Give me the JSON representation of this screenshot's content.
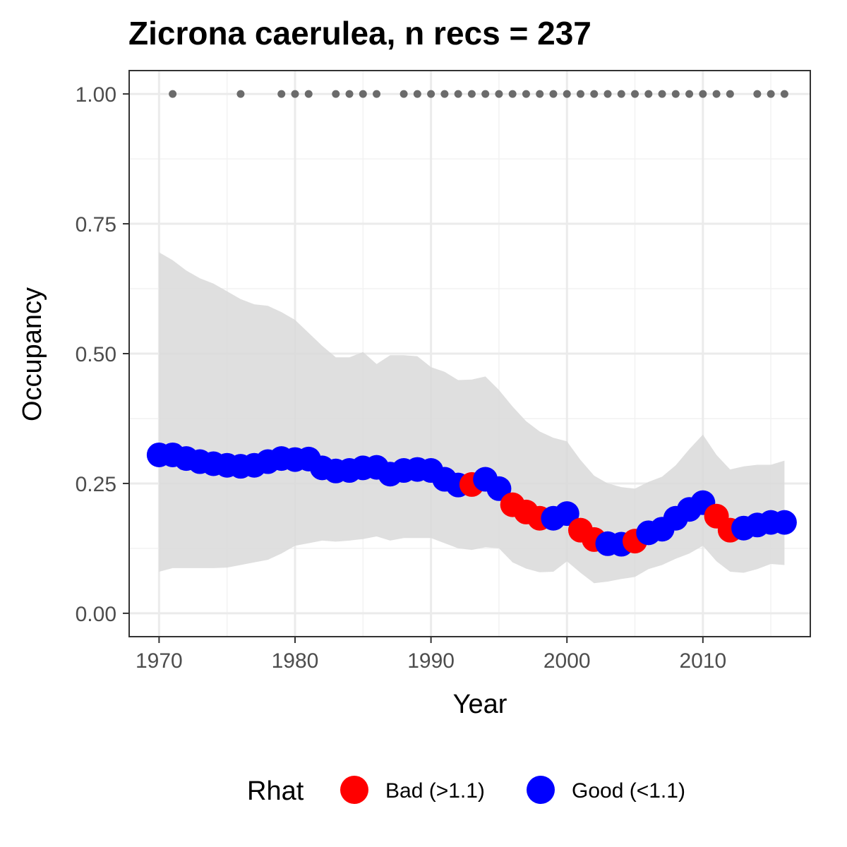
{
  "chart_data": {
    "type": "line",
    "title": "Zicrona caerulea, n recs = 237",
    "xlabel": "Year",
    "ylabel": "Occupancy",
    "xlim": [
      1967.8,
      2017.9
    ],
    "ylim": [
      -0.045,
      1.045
    ],
    "x_ticks": [
      1970,
      1980,
      1990,
      2000,
      2010
    ],
    "x_tick_labels": [
      "1970",
      "1980",
      "1990",
      "2000",
      "2010"
    ],
    "y_ticks": [
      0,
      0.25,
      0.5,
      0.75,
      1.0
    ],
    "y_tick_labels": [
      "0.00",
      "0.25",
      "0.50",
      "0.75",
      "1.00"
    ],
    "grid": true,
    "legend": {
      "title": "Rhat",
      "position": "bottom",
      "entries": [
        {
          "label": "Bad (>1.1)",
          "color": "#ff0000"
        },
        {
          "label": "Good (<1.1)",
          "color": "#0000ff"
        }
      ]
    },
    "colors": {
      "bad": "#ff0000",
      "good": "#0000ff",
      "ribbon": "#d9d9d9",
      "records": "#6b6b6b"
    },
    "series": [
      {
        "name": "Occupancy",
        "x": [
          1970,
          1971,
          1972,
          1973,
          1974,
          1975,
          1976,
          1977,
          1978,
          1979,
          1980,
          1981,
          1982,
          1983,
          1984,
          1985,
          1986,
          1987,
          1988,
          1989,
          1990,
          1991,
          1992,
          1993,
          1994,
          1995,
          1996,
          1997,
          1998,
          1999,
          2000,
          2001,
          2002,
          2003,
          2004,
          2005,
          2006,
          2007,
          2008,
          2009,
          2010,
          2011,
          2012,
          2013,
          2014,
          2015,
          2016
        ],
        "y": [
          0.305,
          0.305,
          0.298,
          0.292,
          0.288,
          0.285,
          0.283,
          0.285,
          0.292,
          0.298,
          0.296,
          0.297,
          0.28,
          0.274,
          0.275,
          0.28,
          0.281,
          0.268,
          0.275,
          0.277,
          0.275,
          0.258,
          0.247,
          0.248,
          0.258,
          0.24,
          0.209,
          0.195,
          0.183,
          0.183,
          0.192,
          0.16,
          0.142,
          0.134,
          0.133,
          0.139,
          0.155,
          0.162,
          0.183,
          0.2,
          0.213,
          0.187,
          0.16,
          0.164,
          0.17,
          0.175,
          0.175
        ],
        "rhat": [
          "Good",
          "Good",
          "Good",
          "Good",
          "Good",
          "Good",
          "Good",
          "Good",
          "Good",
          "Good",
          "Good",
          "Good",
          "Good",
          "Good",
          "Good",
          "Good",
          "Good",
          "Good",
          "Good",
          "Good",
          "Good",
          "Good",
          "Good",
          "Bad",
          "Good",
          "Good",
          "Bad",
          "Bad",
          "Bad",
          "Good",
          "Good",
          "Bad",
          "Bad",
          "Good",
          "Good",
          "Bad",
          "Good",
          "Good",
          "Good",
          "Good",
          "Good",
          "Bad",
          "Bad",
          "Good",
          "Good",
          "Good",
          "Good"
        ]
      }
    ],
    "ribbon": {
      "x": [
        1970,
        1971,
        1972,
        1973,
        1974,
        1975,
        1976,
        1977,
        1978,
        1979,
        1980,
        1981,
        1982,
        1983,
        1984,
        1985,
        1986,
        1987,
        1988,
        1989,
        1990,
        1991,
        1992,
        1993,
        1994,
        1995,
        1996,
        1997,
        1998,
        1999,
        2000,
        2001,
        2002,
        2003,
        2004,
        2005,
        2006,
        2007,
        2008,
        2009,
        2010,
        2011,
        2012,
        2013,
        2014,
        2015,
        2016
      ],
      "upper": [
        0.695,
        0.68,
        0.66,
        0.645,
        0.635,
        0.62,
        0.605,
        0.595,
        0.592,
        0.58,
        0.565,
        0.54,
        0.515,
        0.493,
        0.493,
        0.503,
        0.48,
        0.497,
        0.497,
        0.495,
        0.474,
        0.465,
        0.449,
        0.45,
        0.456,
        0.43,
        0.398,
        0.37,
        0.35,
        0.338,
        0.331,
        0.295,
        0.265,
        0.25,
        0.243,
        0.24,
        0.253,
        0.263,
        0.285,
        0.316,
        0.344,
        0.305,
        0.277,
        0.283,
        0.286,
        0.286,
        0.294
      ],
      "lower": [
        0.08,
        0.087,
        0.087,
        0.087,
        0.087,
        0.088,
        0.093,
        0.098,
        0.103,
        0.115,
        0.13,
        0.135,
        0.14,
        0.138,
        0.14,
        0.143,
        0.148,
        0.14,
        0.145,
        0.145,
        0.145,
        0.135,
        0.125,
        0.122,
        0.127,
        0.125,
        0.098,
        0.086,
        0.079,
        0.08,
        0.1,
        0.078,
        0.058,
        0.061,
        0.066,
        0.07,
        0.085,
        0.093,
        0.105,
        0.115,
        0.13,
        0.1,
        0.08,
        0.078,
        0.085,
        0.095,
        0.093
      ]
    },
    "records": {
      "y": 1.0,
      "x": [
        1971,
        1976,
        1979,
        1980,
        1981,
        1983,
        1984,
        1985,
        1986,
        1988,
        1989,
        1990,
        1991,
        1992,
        1993,
        1994,
        1995,
        1996,
        1997,
        1998,
        1999,
        2000,
        2001,
        2002,
        2003,
        2004,
        2005,
        2006,
        2007,
        2008,
        2009,
        2010,
        2011,
        2012,
        2014,
        2015,
        2016
      ]
    }
  }
}
